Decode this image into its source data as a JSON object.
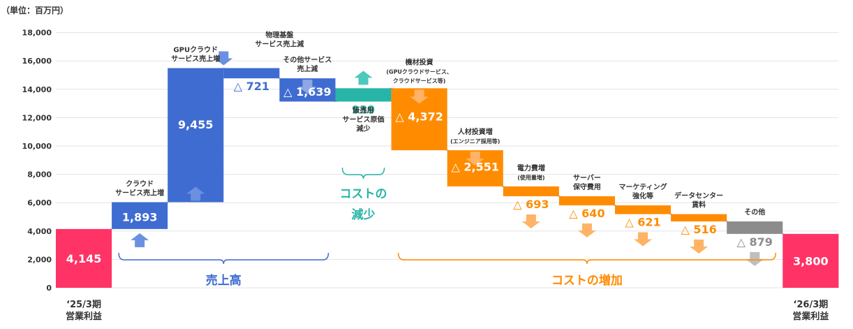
{
  "chart_data": {
    "type": "bar",
    "subtype": "waterfall",
    "unit_label": "（単位：百万円）",
    "ylim": [
      0,
      18000
    ],
    "yticks": [
      "0",
      "2,000",
      "4,000",
      "6,000",
      "8,000",
      "10,000",
      "12,000",
      "14,000",
      "16,000",
      "18,000"
    ],
    "grid": true,
    "steps": [
      {
        "kind": "total",
        "value": 4145,
        "value_label": "4,145",
        "category": [
          "‘25/3期",
          "営業利益"
        ],
        "color": "#FF3366"
      },
      {
        "kind": "increase",
        "value": 1893,
        "value_label": "1,893",
        "label": [
          "クラウド",
          "サービス売上増"
        ],
        "color": "#3F6CD1",
        "arrow": "up",
        "arrow_color": "#6B90E0"
      },
      {
        "kind": "increase",
        "value": 9455,
        "value_label": "9,455",
        "label": [
          "GPUクラウド",
          "サービス売上増"
        ],
        "color": "#3F6CD1",
        "arrow": "up",
        "arrow_color": "#6B90E0"
      },
      {
        "kind": "decrease",
        "value": 721,
        "value_label": "△ 721",
        "label": [
          "物理基盤",
          "サービス売上減"
        ],
        "color": "#3F6CD1",
        "arrow": "down",
        "arrow_color": "#6B90E0"
      },
      {
        "kind": "decrease",
        "value": 1639,
        "value_label": "△ 1,639",
        "label": [
          "その他サービス",
          "売上減"
        ],
        "color": "#3F6CD1",
        "arrow": "down",
        "arrow_color": "#8FA8E4"
      },
      {
        "kind": "increase",
        "value": 939,
        "value_label": "939",
        "label": [
          "販売用",
          "サービス原価",
          "減少"
        ],
        "color": "#26B5A6",
        "arrow": "up",
        "arrow_color": "#4CC9BC"
      },
      {
        "kind": "decrease",
        "value": 4372,
        "value_label": "△ 4,372",
        "label": [
          "機材投資"
        ],
        "sublabel": [
          "(GPUクラウドサービス、",
          "クラウドサービス等)"
        ],
        "color": "#FF8C00",
        "arrow": "down",
        "arrow_color": "#FFB366"
      },
      {
        "kind": "decrease",
        "value": 2551,
        "value_label": "△ 2,551",
        "label": [
          "人材投資増"
        ],
        "sublabel": [
          "(エンジニア採用等)"
        ],
        "color": "#FF8C00",
        "arrow": "down",
        "arrow_color": "#FFB366"
      },
      {
        "kind": "decrease",
        "value": 693,
        "value_label": "△ 693",
        "label": [
          "電力費増"
        ],
        "sublabel": [
          "(使用量増)"
        ],
        "color": "#FF8C00",
        "arrow": "down",
        "arrow_color": "#FFB366"
      },
      {
        "kind": "decrease",
        "value": 640,
        "value_label": "△ 640",
        "label": [
          "サーバー",
          "保守費用"
        ],
        "color": "#FF8C00",
        "arrow": "down",
        "arrow_color": "#FFB366"
      },
      {
        "kind": "decrease",
        "value": 621,
        "value_label": "△ 621",
        "label": [
          "マーケティング",
          "強化等"
        ],
        "color": "#FF8C00",
        "arrow": "down",
        "arrow_color": "#FFB366"
      },
      {
        "kind": "decrease",
        "value": 516,
        "value_label": "△ 516",
        "label": [
          "データセンター",
          "賃料"
        ],
        "color": "#FF8C00",
        "arrow": "down",
        "arrow_color": "#FFB366"
      },
      {
        "kind": "decrease",
        "value": 879,
        "value_label": "△ 879",
        "label": [
          "その他"
        ],
        "color": "#8C8C8C",
        "arrow": "down",
        "arrow_color": "#BFBFBF"
      },
      {
        "kind": "total",
        "value": 3800,
        "value_label": "3,800",
        "category": [
          "‘26/3期",
          "営業利益"
        ],
        "color": "#FF3366"
      }
    ],
    "groups": [
      {
        "label": [
          "売上高"
        ],
        "from": 1,
        "to": 4,
        "color": "#3F6CD1"
      },
      {
        "label": [
          "コストの",
          "減少"
        ],
        "from": 5,
        "to": 5,
        "color": "#26B5A6",
        "above": true
      },
      {
        "label": [
          "コストの増加"
        ],
        "from": 6,
        "to": 12,
        "color": "#FF8C00"
      }
    ]
  }
}
